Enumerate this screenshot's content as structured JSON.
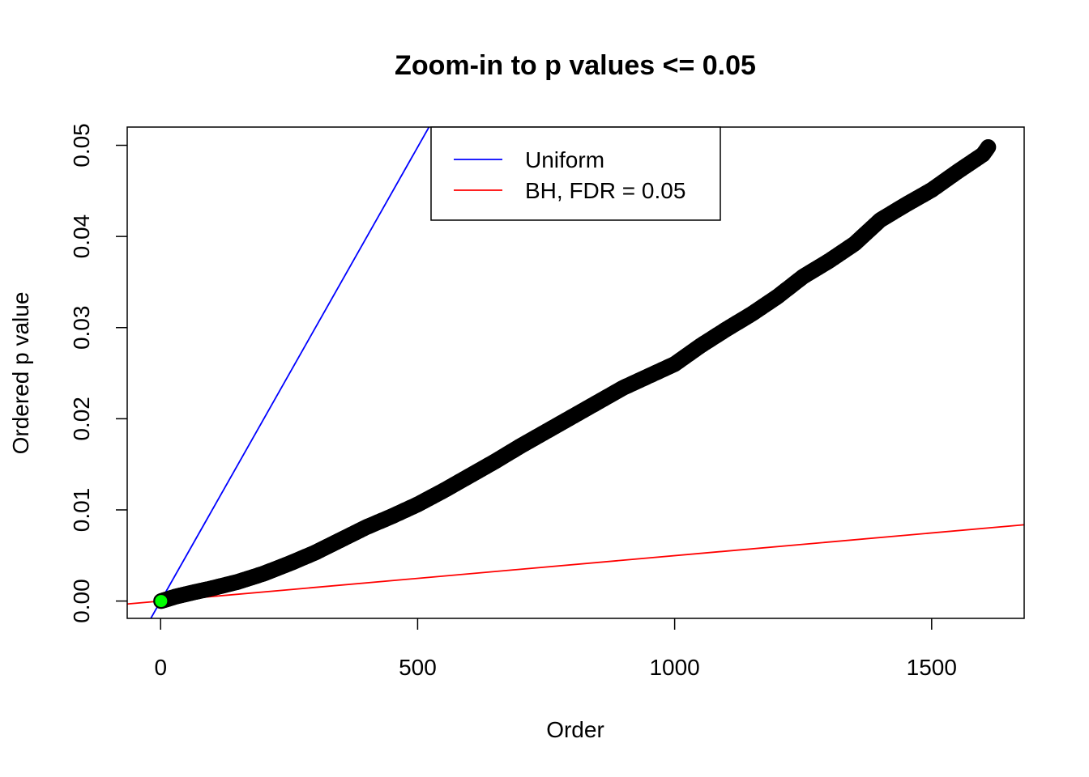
{
  "chart_data": {
    "type": "scatter",
    "title": "Zoom-in to p values <= 0.05",
    "xlabel": "Order",
    "ylabel": "Ordered p value",
    "xlim": [
      -65,
      1680
    ],
    "ylim": [
      -0.0019,
      0.052
    ],
    "xticks": [
      0,
      500,
      1000,
      1500
    ],
    "xtick_labels": [
      "0",
      "500",
      "1000",
      "1500"
    ],
    "yticks": [
      0.0,
      0.01,
      0.02,
      0.03,
      0.04,
      0.05
    ],
    "ytick_labels": [
      "0.00",
      "0.01",
      "0.02",
      "0.03",
      "0.04",
      "0.05"
    ],
    "grid": false,
    "legend": {
      "placement": "top-center",
      "entries": [
        {
          "label": "Uniform",
          "color": "#0000ff"
        },
        {
          "label": "BH, FDR = 0.05",
          "color": "#ff0000"
        }
      ]
    },
    "lines": [
      {
        "name": "Uniform",
        "color": "#0000ff",
        "slope": 9.96e-05,
        "intercept": 0
      },
      {
        "name": "BH, FDR = 0.05",
        "color": "#ff0000",
        "slope": 4.98e-06,
        "intercept": 0
      }
    ],
    "series": [
      {
        "name": "Ordered p values",
        "color": "#000000",
        "x": [
          1,
          30,
          60,
          100,
          150,
          200,
          250,
          300,
          350,
          400,
          450,
          500,
          550,
          600,
          650,
          700,
          750,
          800,
          850,
          900,
          950,
          1000,
          1050,
          1100,
          1150,
          1200,
          1250,
          1300,
          1350,
          1400,
          1450,
          1500,
          1550,
          1600,
          1610
        ],
        "y": [
          0.0,
          0.0005,
          0.0009,
          0.0014,
          0.0021,
          0.003,
          0.0041,
          0.0053,
          0.0067,
          0.0081,
          0.0093,
          0.0106,
          0.0121,
          0.0137,
          0.0153,
          0.017,
          0.0186,
          0.0202,
          0.0218,
          0.0234,
          0.0247,
          0.026,
          0.028,
          0.0298,
          0.0315,
          0.0334,
          0.0356,
          0.0373,
          0.0392,
          0.0418,
          0.0435,
          0.0451,
          0.0471,
          0.049,
          0.0498
        ]
      }
    ],
    "highlight_points": [
      {
        "x": 1,
        "y": 0.0,
        "color": "#00ff00"
      }
    ]
  }
}
